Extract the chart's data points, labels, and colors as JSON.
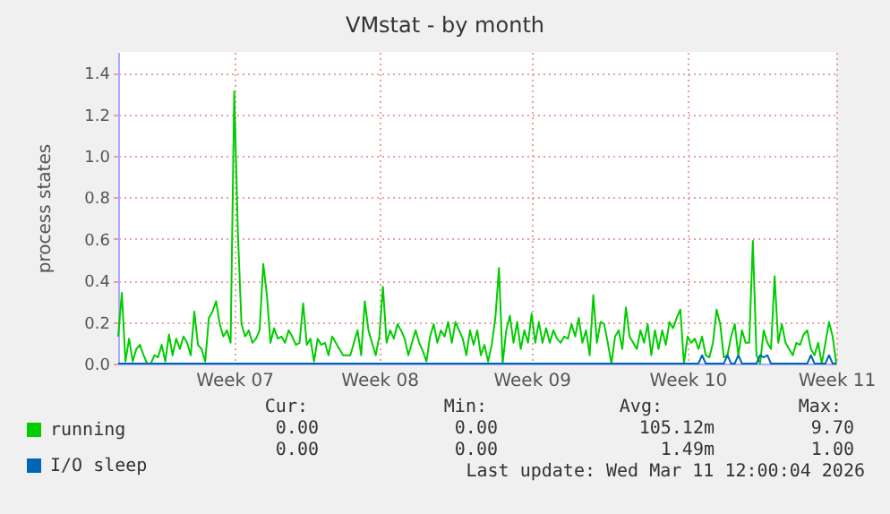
{
  "chart_data": {
    "type": "line",
    "title": "VMstat - by month",
    "ylabel": "process states",
    "ylim": [
      0,
      1.5
    ],
    "categories": [
      null,
      null,
      null,
      null,
      null,
      null,
      null,
      null,
      null,
      null,
      null,
      null,
      null,
      null,
      null,
      null,
      null,
      null,
      null,
      null,
      null,
      null,
      null,
      null,
      null,
      null,
      null,
      null,
      null,
      null,
      null,
      null,
      "Week 07",
      null,
      null,
      null,
      null,
      null,
      null,
      null,
      null,
      null,
      null,
      null,
      null,
      null,
      null,
      null,
      null,
      null,
      null,
      null,
      null,
      null,
      null,
      null,
      null,
      null,
      null,
      null,
      null,
      null,
      null,
      null,
      null,
      null,
      null,
      null,
      null,
      null,
      null,
      null,
      "Week 08",
      null,
      null,
      null,
      null,
      null,
      null,
      null,
      null,
      null,
      null,
      null,
      null,
      null,
      null,
      null,
      null,
      null,
      null,
      null,
      null,
      null,
      null,
      null,
      null,
      null,
      null,
      null,
      null,
      null,
      null,
      null,
      null,
      null,
      null,
      null,
      null,
      null,
      null,
      null,
      null,
      null,
      "Week 09",
      null,
      null,
      null,
      null,
      null,
      null,
      null,
      null,
      null,
      null,
      null,
      null,
      null,
      null,
      null,
      null,
      null,
      null,
      null,
      null,
      null,
      null,
      null,
      null,
      null,
      null,
      null,
      null,
      null,
      null,
      null,
      null,
      null,
      null,
      null,
      null,
      null,
      null,
      null,
      null,
      null,
      null,
      "Week 10",
      null,
      null,
      null,
      null,
      null,
      null,
      null,
      null,
      null,
      null,
      null,
      null,
      null,
      null,
      null,
      null,
      null,
      null,
      null,
      null,
      null,
      null,
      null,
      null,
      null,
      null,
      null,
      null,
      null,
      null,
      null,
      null,
      null,
      null,
      null,
      null,
      null,
      null,
      null,
      null,
      "Week 11"
    ],
    "yticks": [
      {
        "value": 0,
        "label": "0.0"
      },
      {
        "value": 0.2,
        "label": "0.2"
      },
      {
        "value": 0.4,
        "label": "0.4"
      },
      {
        "value": 0.6,
        "label": "0.6"
      },
      {
        "value": 0.8,
        "label": "0.8"
      },
      {
        "value": 1,
        "label": "1.0"
      },
      {
        "value": 1.2,
        "label": "1.2"
      },
      {
        "value": 1.4,
        "label": "1.4"
      }
    ],
    "grid": true,
    "legend": "bottom left",
    "series": [
      {
        "name": "running",
        "color": "#00cc00",
        "values": [
          0.13,
          0.34,
          0.01,
          0.12,
          0.01,
          0.07,
          0.09,
          0.04,
          0,
          0,
          0.04,
          0.03,
          0.09,
          0.01,
          0.14,
          0.04,
          0.12,
          0.07,
          0.13,
          0.1,
          0.04,
          0.25,
          0.09,
          0.07,
          0.01,
          0.22,
          0.25,
          0.3,
          0.19,
          0.13,
          0.16,
          0.1,
          1.31,
          0.63,
          0.19,
          0.13,
          0.16,
          0.1,
          0.12,
          0.16,
          0.48,
          0.33,
          0.1,
          0.17,
          0.12,
          0.13,
          0.1,
          0.16,
          0.13,
          0.09,
          0.1,
          0.29,
          0.09,
          0.12,
          0.01,
          0.12,
          0.09,
          0.1,
          0.04,
          0.13,
          0.1,
          0.07,
          0.04,
          0.04,
          0.04,
          0.1,
          0.16,
          0.04,
          0.3,
          0.16,
          0.1,
          0.04,
          0.13,
          0.37,
          0.1,
          0.16,
          0.12,
          0.19,
          0.16,
          0.12,
          0.04,
          0.1,
          0.16,
          0.1,
          0.06,
          0.01,
          0.13,
          0.19,
          0.1,
          0.16,
          0.13,
          0.2,
          0.1,
          0.2,
          0.16,
          0.12,
          0.04,
          0.16,
          0.09,
          0.16,
          0.04,
          0.09,
          0.01,
          0.09,
          0.22,
          0.46,
          0,
          0.16,
          0.23,
          0.1,
          0.2,
          0.07,
          0.16,
          0.1,
          0.24,
          0.1,
          0.2,
          0.1,
          0.17,
          0.1,
          0.16,
          0.12,
          0.1,
          0.13,
          0.12,
          0.19,
          0.13,
          0.22,
          0.1,
          0.16,
          0.04,
          0.33,
          0.1,
          0.2,
          0.19,
          0.1,
          0,
          0.13,
          0.16,
          0.07,
          0.27,
          0.13,
          0.1,
          0.07,
          0.16,
          0.1,
          0.19,
          0.04,
          0.16,
          0.07,
          0.16,
          0.09,
          0.2,
          0.17,
          0.22,
          0.26,
          0,
          0.13,
          0.1,
          0.12,
          0.07,
          0.13,
          0.04,
          0.03,
          0.1,
          0.26,
          0.19,
          0.03,
          0.04,
          0.13,
          0.19,
          0.04,
          0.16,
          0.1,
          0.1,
          0.59,
          0.04,
          0,
          0.16,
          0.1,
          0.07,
          0.42,
          0.1,
          0.19,
          0.1,
          0.07,
          0.04,
          0.1,
          0.09,
          0.14,
          0.16,
          0.07,
          0.04,
          0.1,
          0,
          0.1,
          0.2,
          0.13,
          0
        ]
      },
      {
        "name": "I/O sleep",
        "color": "#0066b3",
        "values": [
          0,
          0,
          0,
          0,
          0,
          0,
          0,
          0,
          0,
          0,
          0,
          0,
          0,
          0,
          0,
          0,
          0,
          0,
          0,
          0,
          0,
          0,
          0,
          0,
          0,
          0,
          0,
          0,
          0,
          0,
          0,
          0,
          0,
          0,
          0,
          0,
          0,
          0,
          0,
          0,
          0,
          0,
          0,
          0,
          0,
          0,
          0,
          0,
          0,
          0,
          0,
          0,
          0,
          0,
          0,
          0,
          0,
          0,
          0,
          0,
          0,
          0,
          0,
          0,
          0,
          0,
          0,
          0,
          0,
          0,
          0,
          0,
          0,
          0,
          0,
          0,
          0,
          0,
          0,
          0,
          0,
          0,
          0,
          0,
          0,
          0,
          0,
          0,
          0,
          0,
          0,
          0,
          0,
          0,
          0,
          0,
          0,
          0,
          0,
          0,
          0,
          0,
          0,
          0,
          0,
          0,
          0,
          0,
          0,
          0,
          0,
          0,
          0,
          0,
          0,
          0,
          0,
          0,
          0,
          0,
          0,
          0,
          0,
          0,
          0,
          0,
          0,
          0,
          0,
          0,
          0,
          0,
          0,
          0,
          0,
          0,
          0,
          0,
          0,
          0,
          0,
          0,
          0,
          0,
          0,
          0,
          0,
          0,
          0,
          0,
          0,
          0,
          0,
          0,
          0,
          0,
          0,
          0,
          0,
          0,
          0,
          0.04,
          0,
          0,
          0,
          0,
          0,
          0,
          0.04,
          0,
          0,
          0.04,
          0,
          0,
          0,
          0,
          0,
          0.04,
          0.03,
          0.04,
          0,
          0,
          0,
          0,
          0,
          0,
          0,
          0,
          0,
          0,
          0,
          0.04,
          0,
          0,
          0,
          0,
          0.04,
          0,
          0
        ]
      }
    ],
    "annotations": [
      "Cur:",
      "Min:",
      "Avg:",
      "Max:",
      "0.00",
      "0.00",
      "105.12m",
      "9.70",
      "0.00",
      "0.00",
      "1.49m",
      "1.00",
      "Last update: Wed Mar 11 12:00:04 2026"
    ]
  }
}
